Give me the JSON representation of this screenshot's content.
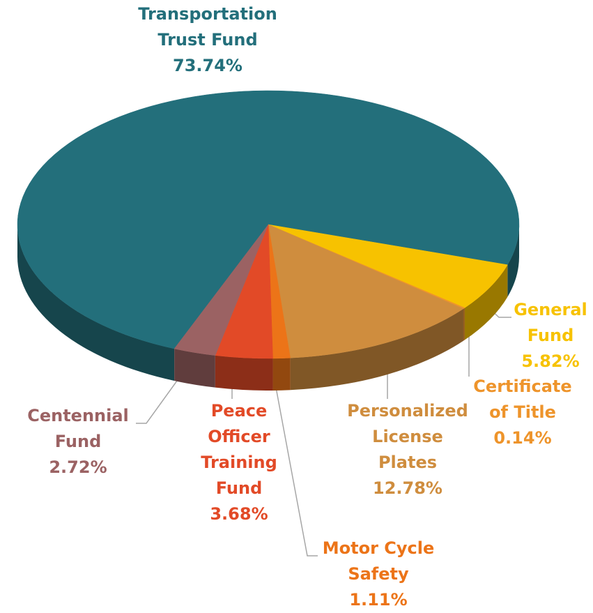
{
  "chart_data": {
    "type": "pie",
    "categories": [
      "Transportation Trust Fund",
      "General Fund",
      "Certificate of Title",
      "Personalized License Plates",
      "Motor Cycle Safety",
      "Peace Officer Training Fund",
      "Centennial Fund"
    ],
    "values": [
      73.74,
      5.82,
      0.14,
      12.78,
      1.11,
      3.68,
      2.72
    ],
    "value_labels": [
      "73.74%",
      "5.82%",
      "0.14%",
      "12.78%",
      "1.11%",
      "3.68%",
      "2.72%"
    ],
    "colors": [
      "#236f7b",
      "#f7c200",
      "#ee942b",
      "#cf8d3e",
      "#ec7418",
      "#e24a27",
      "#9b6263"
    ]
  }
}
